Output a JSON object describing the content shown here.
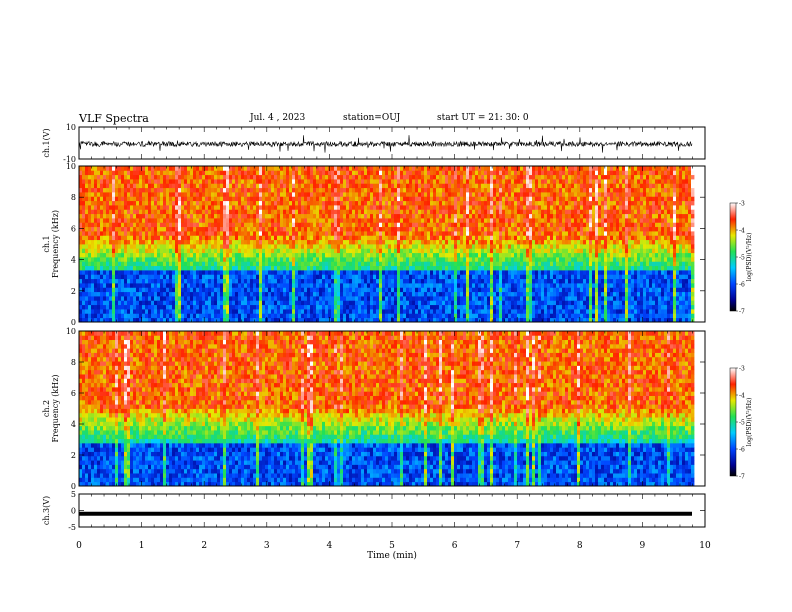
{
  "header": {
    "title": "VLF Spectra",
    "date": "Jul. 4 , 2023",
    "station": "station=OUJ",
    "start": "start UT = 21: 30: 0"
  },
  "chart_data": [
    {
      "id": "ch1_waveform",
      "type": "line",
      "ylabel": "ch.1(V)",
      "ylim": [
        -10,
        10
      ],
      "y_ticks": [
        "10",
        "-10"
      ],
      "xlim": [
        0,
        10
      ]
    },
    {
      "id": "ch1_spectrogram",
      "type": "heatmap",
      "ylabel_top": "ch.1",
      "ylabel": "Frequency (kHz)",
      "ylim": [
        0,
        10
      ],
      "y_ticks": [
        "0",
        "2",
        "4",
        "6",
        "8",
        "10"
      ],
      "xlim": [
        0,
        9.8
      ],
      "colorbar": {
        "label": "log(PSD)(V²/Hz)",
        "range": [
          -7,
          -3
        ],
        "ticks": [
          "-3",
          "-4",
          "-5",
          "-6",
          "-7"
        ]
      }
    },
    {
      "id": "ch2_spectrogram",
      "type": "heatmap",
      "ylabel_top": "ch.2",
      "ylabel": "Frequency (kHz)",
      "ylim": [
        0,
        10
      ],
      "y_ticks": [
        "0",
        "2",
        "4",
        "6",
        "8",
        "10"
      ],
      "xlim": [
        0,
        9.8
      ],
      "colorbar": {
        "label": "log(PSD)(V²/Hz)",
        "range": [
          -7,
          -3
        ],
        "ticks": [
          "-3",
          "-4",
          "-5",
          "-6",
          "-7"
        ]
      }
    },
    {
      "id": "ch3_waveform",
      "type": "line",
      "ylabel": "ch.3(V)",
      "ylim": [
        -5,
        5
      ],
      "y_ticks": [
        "5",
        "0",
        "-5"
      ],
      "level": -1,
      "xlim": [
        0,
        10
      ],
      "xlabel": "Time (min)",
      "x_ticks": [
        "0",
        "1",
        "2",
        "3",
        "4",
        "5",
        "6",
        "7",
        "8",
        "9",
        "10"
      ]
    }
  ]
}
